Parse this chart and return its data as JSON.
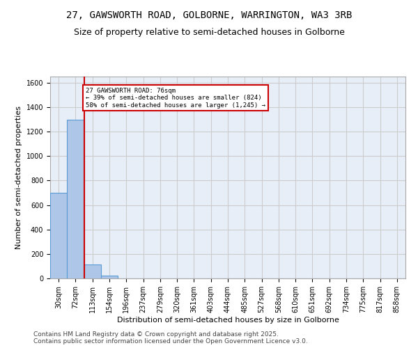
{
  "title_line1": "27, GAWSWORTH ROAD, GOLBORNE, WARRINGTON, WA3 3RB",
  "title_line2": "Size of property relative to semi-detached houses in Golborne",
  "xlabel": "Distribution of semi-detached houses by size in Golborne",
  "ylabel": "Number of semi-detached properties",
  "categories": [
    "30sqm",
    "72sqm",
    "113sqm",
    "154sqm",
    "196sqm",
    "237sqm",
    "279sqm",
    "320sqm",
    "361sqm",
    "403sqm",
    "444sqm",
    "485sqm",
    "527sqm",
    "568sqm",
    "610sqm",
    "651sqm",
    "692sqm",
    "734sqm",
    "775sqm",
    "817sqm",
    "858sqm"
  ],
  "values": [
    700,
    1300,
    115,
    25,
    0,
    0,
    0,
    0,
    0,
    0,
    0,
    0,
    0,
    0,
    0,
    0,
    0,
    0,
    0,
    0,
    0
  ],
  "bar_color": "#aec6e8",
  "bar_edge_color": "#5b9bd5",
  "annotation_text": "27 GAWSWORTH ROAD: 76sqm\n← 39% of semi-detached houses are smaller (824)\n58% of semi-detached houses are larger (1,245) →",
  "annotation_box_color": "#ffffff",
  "annotation_box_edge_color": "#cc0000",
  "vline_color": "#cc0000",
  "vline_x": 1,
  "ylim": [
    0,
    1650
  ],
  "yticks": [
    0,
    200,
    400,
    600,
    800,
    1000,
    1200,
    1400,
    1600
  ],
  "grid_color": "#cccccc",
  "background_color": "#e8eef8",
  "footer_text": "Contains HM Land Registry data © Crown copyright and database right 2025.\nContains public sector information licensed under the Open Government Licence v3.0.",
  "title_fontsize": 10,
  "subtitle_fontsize": 9,
  "axis_label_fontsize": 8,
  "tick_fontsize": 7,
  "footer_fontsize": 6.5
}
